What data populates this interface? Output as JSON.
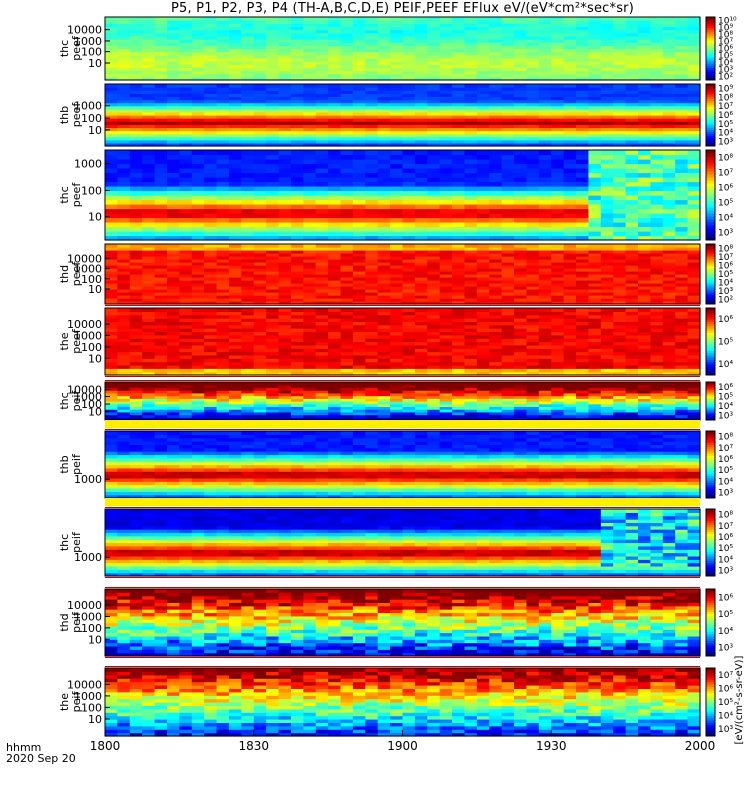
{
  "title": "P5, P1, P2, P3, P4 (TH-A,B,C,D,E) PEIF,PEEF EFlux eV/(eV*cm²*sec*sr)",
  "time_axis": {
    "label": "hhmm",
    "date": "2020 Sep 20",
    "ticks": [
      "1800",
      "1830",
      "1900",
      "1930",
      "2000"
    ]
  },
  "chart_data": [
    {
      "type": "heatmap",
      "panel": "thc peef",
      "ylabel": [
        "thc",
        "peef"
      ],
      "yscale": "log",
      "ytick_labels": [
        "10",
        "100",
        "1000",
        "10000"
      ],
      "colorbar_labels": [
        "10²",
        "10³",
        "10⁴",
        "10⁵",
        "10⁶",
        "10⁷",
        "10⁸",
        "10⁹",
        "10¹⁰"
      ]
    },
    {
      "type": "heatmap",
      "panel": "thb peef",
      "ylabel": [
        "thb",
        "peef"
      ],
      "yscale": "log",
      "ytick_labels": [
        "10",
        "100",
        "1000"
      ],
      "colorbar_labels": [
        "10³",
        "10⁴",
        "10⁵",
        "10⁶",
        "10⁷",
        "10⁸",
        "10⁹"
      ]
    },
    {
      "type": "heatmap",
      "panel": "thc peef",
      "ylabel": [
        "thc",
        "peef"
      ],
      "yscale": "log",
      "ytick_labels": [
        "10",
        "100",
        "1000"
      ],
      "colorbar_labels": [
        "10³",
        "10⁴",
        "10⁵",
        "10⁶",
        "10⁷",
        "10⁸"
      ]
    },
    {
      "type": "heatmap",
      "panel": "thd peef",
      "ylabel": [
        "thd",
        "peef"
      ],
      "yscale": "log",
      "ytick_labels": [
        "10",
        "100",
        "1000",
        "10000"
      ],
      "colorbar_labels": [
        "10²",
        "10³",
        "10⁴",
        "10⁵",
        "10⁶",
        "10⁷",
        "10⁸"
      ]
    },
    {
      "type": "heatmap",
      "panel": "the peef",
      "ylabel": [
        "the",
        "peef"
      ],
      "yscale": "log",
      "ytick_labels": [
        "10",
        "100",
        "1000",
        "10000"
      ],
      "colorbar_labels": [
        "10⁴",
        "10⁵",
        "10⁶"
      ]
    },
    {
      "type": "heatmap",
      "panel": "thc peif",
      "ylabel": [
        "thc",
        "peif"
      ],
      "yscale": "log",
      "ytick_labels": [
        "10",
        "100",
        "1000",
        "10000"
      ],
      "colorbar_labels": [
        "10³",
        "10⁴",
        "10⁵",
        "10⁶"
      ]
    },
    {
      "type": "heatmap",
      "panel": "thb peif",
      "ylabel": [
        "thb",
        "peif"
      ],
      "yscale": "log",
      "ytick_labels": [
        "1000"
      ],
      "colorbar_labels": [
        "10³",
        "10⁴",
        "10⁵",
        "10⁶",
        "10⁷",
        "10⁸"
      ]
    },
    {
      "type": "heatmap",
      "panel": "thc peif",
      "ylabel": [
        "thc",
        "peif"
      ],
      "yscale": "log",
      "ytick_labels": [
        "1000"
      ],
      "colorbar_labels": [
        "10³",
        "10⁴",
        "10⁵",
        "10⁶",
        "10⁷",
        "10⁸"
      ]
    },
    {
      "type": "heatmap",
      "panel": "thd peif",
      "ylabel": [
        "thd",
        "peif"
      ],
      "yscale": "log",
      "ytick_labels": [
        "10",
        "100",
        "1000",
        "10000"
      ],
      "colorbar_labels": [
        "10³",
        "10⁴",
        "10⁵",
        "10⁶"
      ]
    },
    {
      "type": "heatmap",
      "panel": "the peif",
      "ylabel": [
        "the",
        "peif"
      ],
      "yscale": "log",
      "ytick_labels": [
        "10",
        "100",
        "1000",
        "10000"
      ],
      "colorbar_labels": [
        "10³",
        "10⁴",
        "10⁵",
        "10⁶",
        "10⁷"
      ]
    }
  ],
  "colorbar_unit": "[eV/(cm²-s-sr-eV)]"
}
